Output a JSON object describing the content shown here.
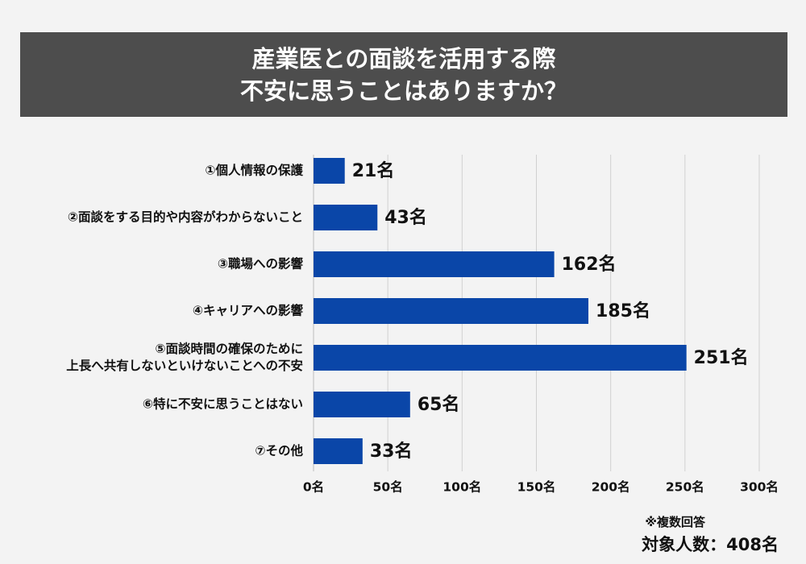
{
  "title": {
    "line1": "産業医との面談を活用する際",
    "line2": "不安に思うことはありますか？"
  },
  "colors": {
    "bar": "#0a46a8",
    "banner": "#4d4d4d",
    "background": "#f3f3f3",
    "grid": "#d0d0d0"
  },
  "chart_data": {
    "type": "bar",
    "orientation": "horizontal",
    "categories": [
      [
        "①個人情報の保護"
      ],
      [
        "②面談をする目的や内容がわからないこと"
      ],
      [
        "③職場への影響"
      ],
      [
        "④キャリアへの影響"
      ],
      [
        "⑤面談時間の確保のために",
        "上長へ共有しないといけないことへの不安"
      ],
      [
        "⑥特に不安に思うことはない"
      ],
      [
        "⑦その他"
      ]
    ],
    "values": [
      21,
      43,
      162,
      185,
      251,
      65,
      33
    ],
    "value_labels": [
      "21名",
      "43名",
      "162名",
      "185名",
      "251名",
      "65名",
      "33名"
    ],
    "xlim": [
      0,
      300
    ],
    "xticks": [
      0,
      50,
      100,
      150,
      200,
      250,
      300
    ],
    "xtick_labels": [
      "0名",
      "50名",
      "100名",
      "150名",
      "200名",
      "250名",
      "300名"
    ],
    "grid": true
  },
  "notes": {
    "multiple_answers": "※複数回答",
    "respondents": "対象人数：408名"
  }
}
